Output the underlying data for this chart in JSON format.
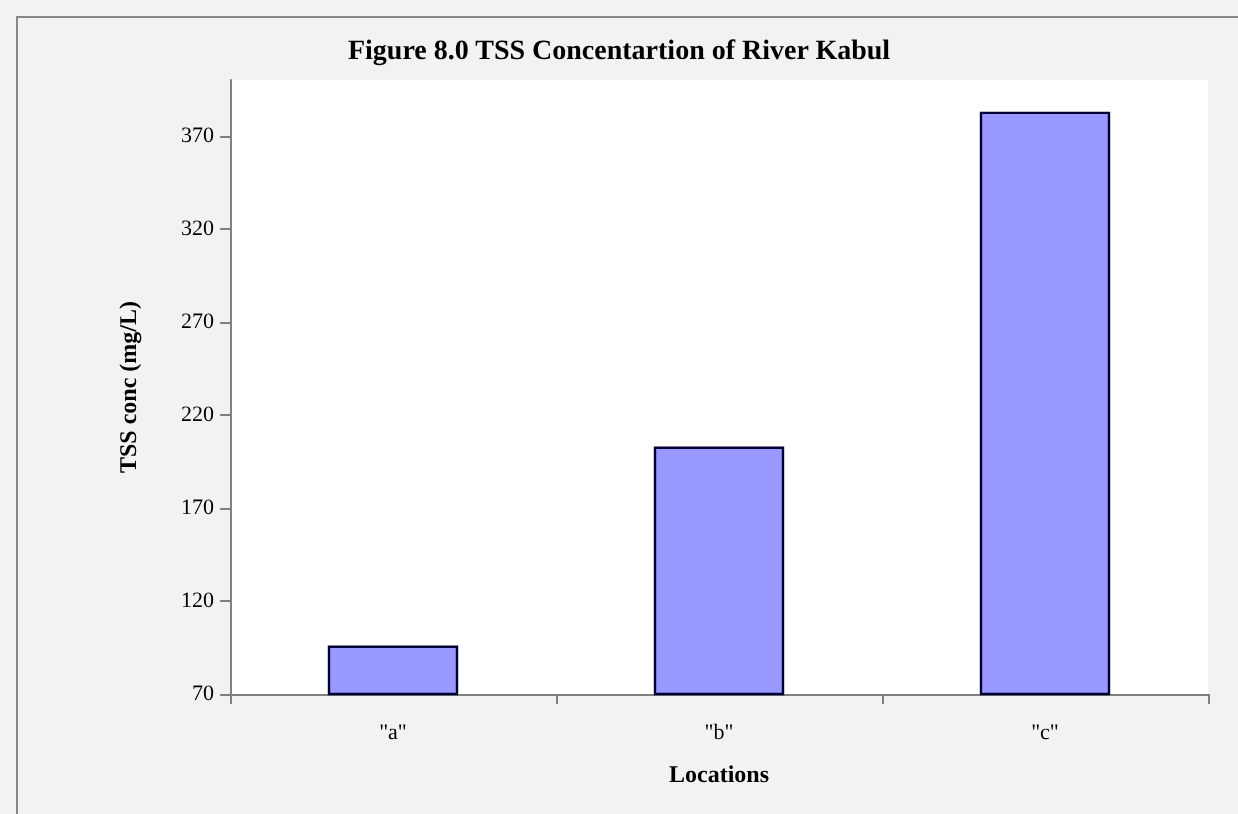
{
  "chart_data": {
    "type": "bar",
    "title": "Figure 8.0 TSS Concentartion of River Kabul",
    "xlabel": "Locations",
    "ylabel": "TSS conc (mg/L)",
    "categories": [
      "\"a\"",
      "\"b\"",
      "\"c\""
    ],
    "values": [
      96,
      203,
      383
    ],
    "color": "#9999ff",
    "ylim": [
      70,
      400
    ],
    "yticks": [
      70,
      120,
      170,
      220,
      270,
      320,
      370
    ],
    "grid": false
  }
}
